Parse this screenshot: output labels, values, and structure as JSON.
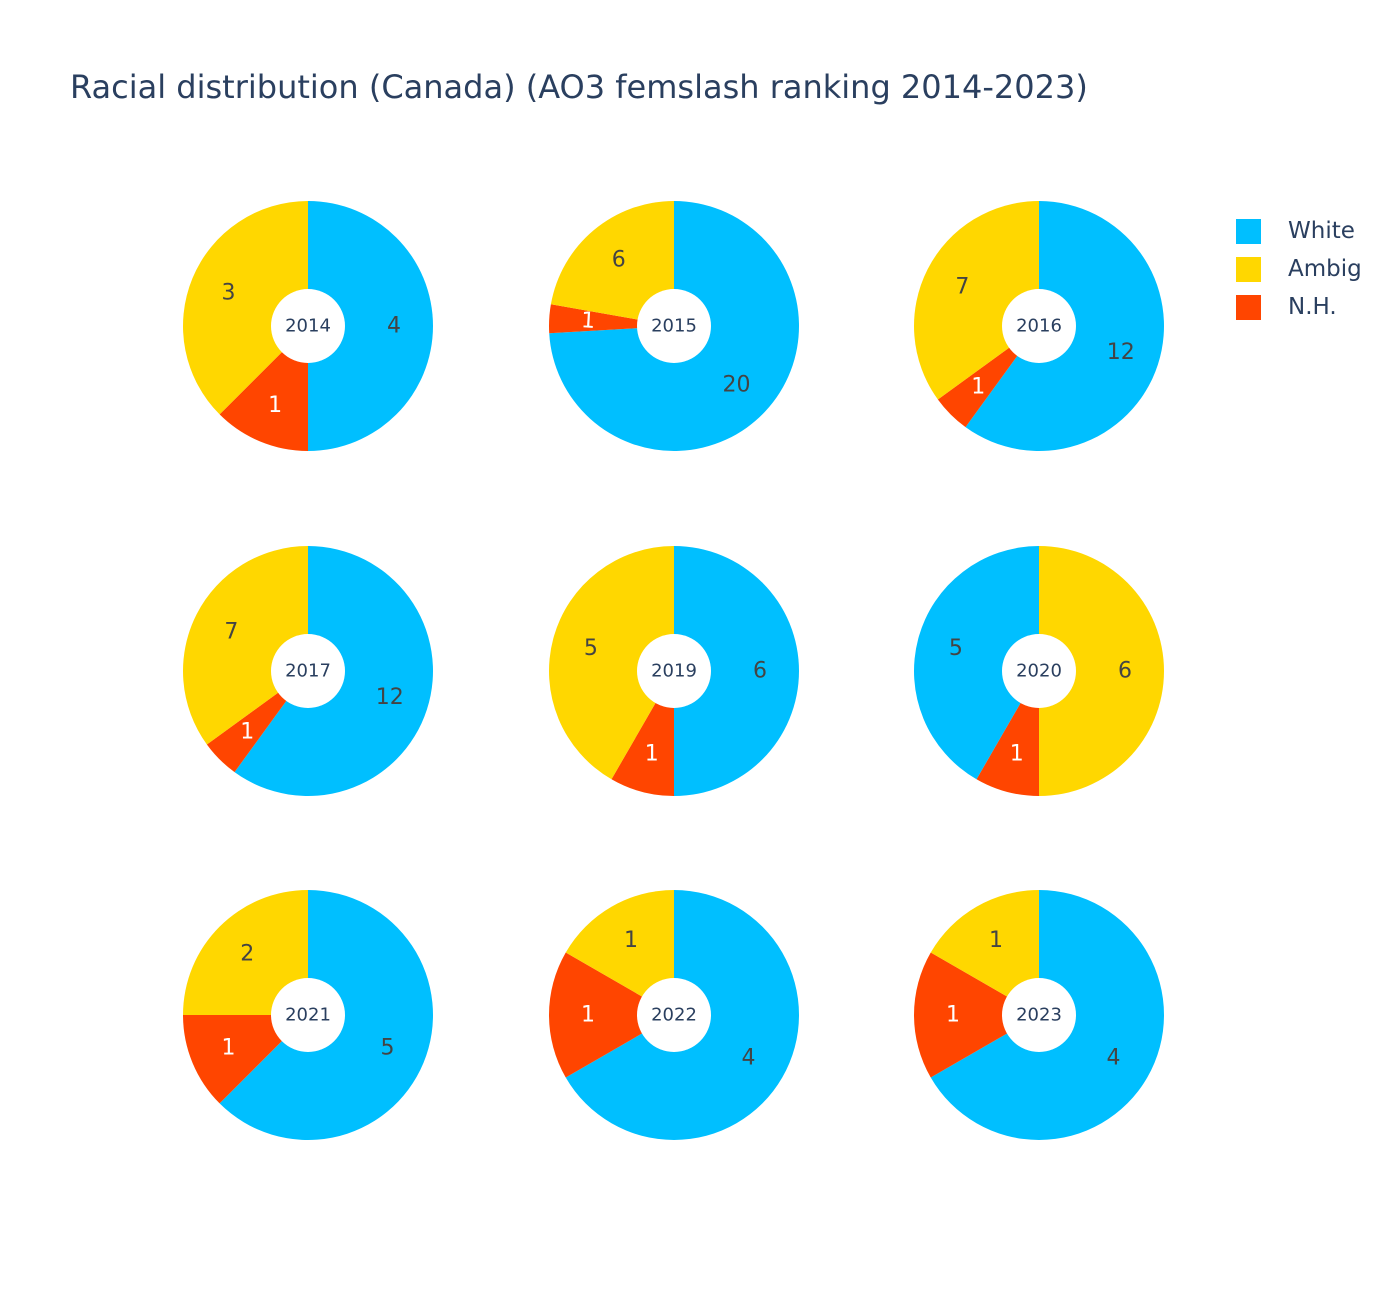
{
  "chart_data": {
    "type": "pie",
    "title": "Racial distribution (Canada) (AO3 femslash ranking 2014-2023)",
    "legend": [
      "White",
      "Ambig",
      "N.H."
    ],
    "legend_position": "top-right",
    "colors": {
      "White": "#00bfff",
      "Ambig": "#ffd700",
      "N.H.": "#ff4500"
    },
    "charts": [
      {
        "label": "2014",
        "slices": [
          {
            "name": "White",
            "value": 4
          },
          {
            "name": "N.H.",
            "value": 1
          },
          {
            "name": "Ambig",
            "value": 3
          }
        ]
      },
      {
        "label": "2015",
        "slices": [
          {
            "name": "White",
            "value": 20
          },
          {
            "name": "N.H.",
            "value": 1
          },
          {
            "name": "Ambig",
            "value": 6
          }
        ]
      },
      {
        "label": "2016",
        "slices": [
          {
            "name": "White",
            "value": 12
          },
          {
            "name": "N.H.",
            "value": 1
          },
          {
            "name": "Ambig",
            "value": 7
          }
        ]
      },
      {
        "label": "2017",
        "slices": [
          {
            "name": "White",
            "value": 12
          },
          {
            "name": "N.H.",
            "value": 1
          },
          {
            "name": "Ambig",
            "value": 7
          }
        ]
      },
      {
        "label": "2019",
        "slices": [
          {
            "name": "White",
            "value": 6
          },
          {
            "name": "N.H.",
            "value": 1
          },
          {
            "name": "Ambig",
            "value": 5
          }
        ]
      },
      {
        "label": "2020",
        "slices": [
          {
            "name": "Ambig",
            "value": 6
          },
          {
            "name": "N.H.",
            "value": 1
          },
          {
            "name": "White",
            "value": 5
          }
        ]
      },
      {
        "label": "2021",
        "slices": [
          {
            "name": "White",
            "value": 5
          },
          {
            "name": "N.H.",
            "value": 1
          },
          {
            "name": "Ambig",
            "value": 2
          }
        ]
      },
      {
        "label": "2022",
        "slices": [
          {
            "name": "White",
            "value": 4
          },
          {
            "name": "N.H.",
            "value": 1
          },
          {
            "name": "Ambig",
            "value": 1
          }
        ]
      },
      {
        "label": "2023",
        "slices": [
          {
            "name": "White",
            "value": 4
          },
          {
            "name": "N.H.",
            "value": 1
          },
          {
            "name": "Ambig",
            "value": 1
          }
        ]
      }
    ]
  }
}
